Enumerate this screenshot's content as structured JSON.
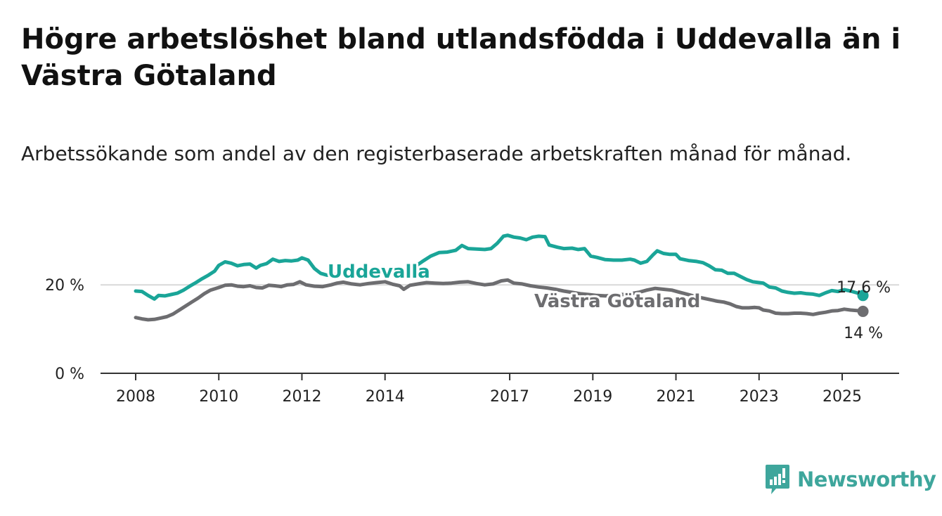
{
  "title": "Högre arbetslöshet bland utlandsfödda i Uddevalla än i Västra Götaland",
  "subtitle": "Arbetssökande som andel av den registerbaserade arbetskraften månad för månad.",
  "logo": {
    "text": "Newsworthy",
    "color": "#3ea69c"
  },
  "chart_data": {
    "type": "line",
    "y_ticks": [
      {
        "value": 0,
        "label": "0 %"
      },
      {
        "value": 20,
        "label": "20 %"
      }
    ],
    "x_ticks": [
      {
        "value": 2008,
        "label": "2008"
      },
      {
        "value": 2010,
        "label": "2010"
      },
      {
        "value": 2012,
        "label": "2012"
      },
      {
        "value": 2014,
        "label": "2014"
      },
      {
        "value": 2017,
        "label": "2017"
      },
      {
        "value": 2019,
        "label": "2019"
      },
      {
        "value": 2021,
        "label": "2021"
      },
      {
        "value": 2023,
        "label": "2023"
      },
      {
        "value": 2025,
        "label": "2025"
      }
    ],
    "xlim": [
      2007.15,
      2026.4
    ],
    "ylim": [
      0,
      31
    ],
    "grid": "horizontal at 20",
    "series": [
      {
        "name": "Uddevalla",
        "color": "#1aa598",
        "end_label": "17,6 %",
        "points": [
          [
            2008.0,
            18.6
          ],
          [
            2008.15,
            18.5
          ],
          [
            2008.3,
            17.6
          ],
          [
            2008.45,
            16.8
          ],
          [
            2008.55,
            17.6
          ],
          [
            2008.7,
            17.5
          ],
          [
            2008.85,
            17.8
          ],
          [
            2009.0,
            18.1
          ],
          [
            2009.15,
            18.8
          ],
          [
            2009.3,
            19.7
          ],
          [
            2009.45,
            20.5
          ],
          [
            2009.6,
            21.4
          ],
          [
            2009.75,
            22.2
          ],
          [
            2009.9,
            23.1
          ],
          [
            2010.0,
            24.4
          ],
          [
            2010.15,
            25.2
          ],
          [
            2010.3,
            24.9
          ],
          [
            2010.45,
            24.3
          ],
          [
            2010.6,
            24.6
          ],
          [
            2010.75,
            24.7
          ],
          [
            2010.9,
            23.8
          ],
          [
            2011.0,
            24.4
          ],
          [
            2011.15,
            24.8
          ],
          [
            2011.3,
            25.8
          ],
          [
            2011.45,
            25.3
          ],
          [
            2011.6,
            25.5
          ],
          [
            2011.75,
            25.4
          ],
          [
            2011.9,
            25.6
          ],
          [
            2012.0,
            26.1
          ],
          [
            2012.15,
            25.6
          ],
          [
            2012.3,
            23.7
          ],
          [
            2012.45,
            22.6
          ],
          [
            2012.6,
            22.2
          ],
          [
            2012.75,
            22.3
          ],
          [
            2012.9,
            22.5
          ],
          [
            2013.1,
            22.9
          ],
          [
            2013.4,
            22.4
          ],
          [
            2013.7,
            22.8
          ],
          [
            2014.0,
            23.0
          ],
          [
            2014.2,
            22.9
          ],
          [
            2014.35,
            22.3
          ],
          [
            2014.5,
            23.1
          ],
          [
            2014.7,
            24.0
          ],
          [
            2014.9,
            25.3
          ],
          [
            2015.1,
            26.5
          ],
          [
            2015.3,
            27.3
          ],
          [
            2015.5,
            27.4
          ],
          [
            2015.7,
            27.8
          ],
          [
            2015.85,
            28.9
          ],
          [
            2016.0,
            28.2
          ],
          [
            2016.2,
            28.1
          ],
          [
            2016.4,
            28.0
          ],
          [
            2016.55,
            28.2
          ],
          [
            2016.7,
            29.4
          ],
          [
            2016.85,
            31.0
          ],
          [
            2016.95,
            31.2
          ],
          [
            2017.1,
            30.8
          ],
          [
            2017.25,
            30.6
          ],
          [
            2017.4,
            30.2
          ],
          [
            2017.55,
            30.8
          ],
          [
            2017.7,
            31.0
          ],
          [
            2017.85,
            30.9
          ],
          [
            2017.95,
            29.0
          ],
          [
            2018.15,
            28.5
          ],
          [
            2018.3,
            28.2
          ],
          [
            2018.5,
            28.3
          ],
          [
            2018.65,
            28.0
          ],
          [
            2018.8,
            28.2
          ],
          [
            2018.95,
            26.5
          ],
          [
            2019.1,
            26.2
          ],
          [
            2019.3,
            25.7
          ],
          [
            2019.5,
            25.6
          ],
          [
            2019.7,
            25.6
          ],
          [
            2019.9,
            25.8
          ],
          [
            2020.0,
            25.6
          ],
          [
            2020.15,
            24.9
          ],
          [
            2020.3,
            25.3
          ],
          [
            2020.45,
            26.8
          ],
          [
            2020.55,
            27.7
          ],
          [
            2020.7,
            27.1
          ],
          [
            2020.85,
            26.9
          ],
          [
            2021.0,
            26.9
          ],
          [
            2021.1,
            25.9
          ],
          [
            2021.3,
            25.5
          ],
          [
            2021.5,
            25.3
          ],
          [
            2021.65,
            25.0
          ],
          [
            2021.8,
            24.3
          ],
          [
            2021.95,
            23.4
          ],
          [
            2022.1,
            23.3
          ],
          [
            2022.25,
            22.6
          ],
          [
            2022.4,
            22.6
          ],
          [
            2022.55,
            21.9
          ],
          [
            2022.7,
            21.2
          ],
          [
            2022.85,
            20.7
          ],
          [
            2023.0,
            20.5
          ],
          [
            2023.1,
            20.4
          ],
          [
            2023.25,
            19.5
          ],
          [
            2023.4,
            19.3
          ],
          [
            2023.55,
            18.6
          ],
          [
            2023.7,
            18.3
          ],
          [
            2023.85,
            18.1
          ],
          [
            2024.0,
            18.2
          ],
          [
            2024.15,
            18.0
          ],
          [
            2024.3,
            17.9
          ],
          [
            2024.45,
            17.6
          ],
          [
            2024.6,
            18.2
          ],
          [
            2024.75,
            18.7
          ],
          [
            2024.9,
            18.5
          ],
          [
            2025.05,
            18.9
          ],
          [
            2025.2,
            18.6
          ],
          [
            2025.35,
            18.2
          ],
          [
            2025.5,
            17.6
          ]
        ]
      },
      {
        "name": "Västra Götaland",
        "color": "#6d6d70",
        "end_label": "14 %",
        "points": [
          [
            2008.0,
            12.6
          ],
          [
            2008.15,
            12.3
          ],
          [
            2008.3,
            12.1
          ],
          [
            2008.45,
            12.2
          ],
          [
            2008.6,
            12.5
          ],
          [
            2008.75,
            12.8
          ],
          [
            2008.9,
            13.4
          ],
          [
            2009.05,
            14.3
          ],
          [
            2009.2,
            15.2
          ],
          [
            2009.35,
            16.1
          ],
          [
            2009.5,
            17.0
          ],
          [
            2009.65,
            18.0
          ],
          [
            2009.8,
            18.8
          ],
          [
            2010.0,
            19.4
          ],
          [
            2010.15,
            19.9
          ],
          [
            2010.3,
            20.0
          ],
          [
            2010.45,
            19.7
          ],
          [
            2010.6,
            19.6
          ],
          [
            2010.75,
            19.8
          ],
          [
            2010.9,
            19.4
          ],
          [
            2011.05,
            19.3
          ],
          [
            2011.2,
            19.9
          ],
          [
            2011.35,
            19.8
          ],
          [
            2011.5,
            19.6
          ],
          [
            2011.65,
            20.0
          ],
          [
            2011.8,
            20.1
          ],
          [
            2011.95,
            20.7
          ],
          [
            2012.1,
            20.0
          ],
          [
            2012.3,
            19.7
          ],
          [
            2012.5,
            19.6
          ],
          [
            2012.7,
            20.0
          ],
          [
            2012.85,
            20.4
          ],
          [
            2013.0,
            20.6
          ],
          [
            2013.2,
            20.2
          ],
          [
            2013.4,
            20.0
          ],
          [
            2013.6,
            20.3
          ],
          [
            2013.8,
            20.5
          ],
          [
            2014.0,
            20.7
          ],
          [
            2014.2,
            20.1
          ],
          [
            2014.35,
            19.8
          ],
          [
            2014.45,
            19.0
          ],
          [
            2014.6,
            19.9
          ],
          [
            2014.8,
            20.2
          ],
          [
            2015.0,
            20.5
          ],
          [
            2015.2,
            20.4
          ],
          [
            2015.4,
            20.3
          ],
          [
            2015.6,
            20.4
          ],
          [
            2015.8,
            20.6
          ],
          [
            2016.0,
            20.7
          ],
          [
            2016.2,
            20.3
          ],
          [
            2016.4,
            20.0
          ],
          [
            2016.6,
            20.2
          ],
          [
            2016.8,
            20.9
          ],
          [
            2016.95,
            21.1
          ],
          [
            2017.1,
            20.4
          ],
          [
            2017.3,
            20.2
          ],
          [
            2017.5,
            19.8
          ],
          [
            2017.7,
            19.5
          ],
          [
            2017.9,
            19.3
          ],
          [
            2018.1,
            19.0
          ],
          [
            2018.3,
            18.6
          ],
          [
            2018.5,
            18.3
          ],
          [
            2018.7,
            18.0
          ],
          [
            2018.9,
            17.8
          ],
          [
            2019.1,
            17.6
          ],
          [
            2019.3,
            17.5
          ],
          [
            2019.5,
            17.6
          ],
          [
            2019.7,
            17.8
          ],
          [
            2019.9,
            18.0
          ],
          [
            2020.1,
            18.3
          ],
          [
            2020.3,
            18.8
          ],
          [
            2020.5,
            19.2
          ],
          [
            2020.7,
            19.0
          ],
          [
            2020.9,
            18.8
          ],
          [
            2021.1,
            18.3
          ],
          [
            2021.3,
            17.8
          ],
          [
            2021.5,
            17.3
          ],
          [
            2021.7,
            16.9
          ],
          [
            2021.85,
            16.6
          ],
          [
            2022.0,
            16.3
          ],
          [
            2022.15,
            16.1
          ],
          [
            2022.3,
            15.7
          ],
          [
            2022.45,
            15.1
          ],
          [
            2022.6,
            14.8
          ],
          [
            2022.75,
            14.8
          ],
          [
            2022.9,
            14.9
          ],
          [
            2023.0,
            14.8
          ],
          [
            2023.1,
            14.3
          ],
          [
            2023.25,
            14.1
          ],
          [
            2023.4,
            13.6
          ],
          [
            2023.55,
            13.5
          ],
          [
            2023.7,
            13.5
          ],
          [
            2023.85,
            13.6
          ],
          [
            2024.0,
            13.6
          ],
          [
            2024.15,
            13.5
          ],
          [
            2024.3,
            13.3
          ],
          [
            2024.45,
            13.6
          ],
          [
            2024.6,
            13.8
          ],
          [
            2024.75,
            14.1
          ],
          [
            2024.9,
            14.2
          ],
          [
            2025.05,
            14.5
          ],
          [
            2025.2,
            14.3
          ],
          [
            2025.35,
            14.2
          ],
          [
            2025.5,
            14.0
          ]
        ]
      }
    ]
  }
}
